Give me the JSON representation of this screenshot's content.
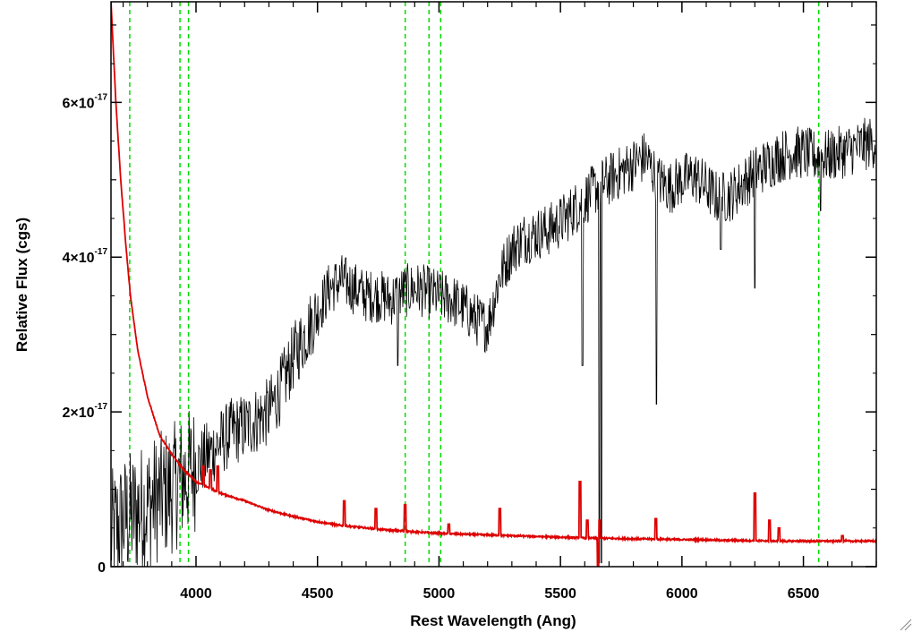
{
  "chart_data": {
    "type": "line",
    "title": "",
    "xlabel": "Rest Wavelength (Ang)",
    "ylabel": "Relative Flux (cgs)",
    "xlim": [
      3650,
      6800
    ],
    "ylim": [
      0,
      7.3e-17
    ],
    "grid": false,
    "legend": "none",
    "x_ticks": [
      {
        "value": 4000,
        "label": "4000"
      },
      {
        "value": 4500,
        "label": "4500"
      },
      {
        "value": 5000,
        "label": "5000"
      },
      {
        "value": 5500,
        "label": "5500"
      },
      {
        "value": 6000,
        "label": "6000"
      },
      {
        "value": 6500,
        "label": "6500"
      }
    ],
    "y_ticks": [
      {
        "value": 0,
        "label": "0",
        "mantissa": "0",
        "exponent": ""
      },
      {
        "value": 2e-17,
        "label": "2×10⁻¹⁷",
        "mantissa": "2×10",
        "exponent": "-17"
      },
      {
        "value": 4e-17,
        "label": "4×10⁻¹⁷",
        "mantissa": "4×10",
        "exponent": "-17"
      },
      {
        "value": 6e-17,
        "label": "6×10⁻¹⁷",
        "mantissa": "6×10",
        "exponent": "-17"
      }
    ],
    "reference_lines_x": [
      3727,
      3934,
      3969,
      4861,
      4959,
      5007,
      6563
    ],
    "series": [
      {
        "color": "#000000",
        "style": "noisy",
        "noise": [
          8.5e-18,
          4.5e-18,
          3.5e-18
        ],
        "points": [
          [
            3650,
            4e-18
          ],
          [
            3700,
            6e-18
          ],
          [
            3750,
            7e-18
          ],
          [
            3800,
            8e-18
          ],
          [
            3850,
            9e-18
          ],
          [
            3900,
            1e-17
          ],
          [
            3950,
            1.15e-17
          ],
          [
            4000,
            1.3e-17
          ],
          [
            4050,
            1.45e-17
          ],
          [
            4100,
            1.6e-17
          ],
          [
            4150,
            1.75e-17
          ],
          [
            4200,
            1.8e-17
          ],
          [
            4250,
            1.9e-17
          ],
          [
            4300,
            2e-17
          ],
          [
            4350,
            2.3e-17
          ],
          [
            4400,
            2.7e-17
          ],
          [
            4450,
            3e-17
          ],
          [
            4500,
            3.3e-17
          ],
          [
            4550,
            3.6e-17
          ],
          [
            4600,
            3.7e-17
          ],
          [
            4650,
            3.6e-17
          ],
          [
            4700,
            3.5e-17
          ],
          [
            4750,
            3.5e-17
          ],
          [
            4800,
            3.45e-17
          ],
          [
            4850,
            3.55e-17
          ],
          [
            4900,
            3.6e-17
          ],
          [
            4950,
            3.55e-17
          ],
          [
            5000,
            3.5e-17
          ],
          [
            5050,
            3.45e-17
          ],
          [
            5100,
            3.35e-17
          ],
          [
            5150,
            3.2e-17
          ],
          [
            5200,
            3.1e-17
          ],
          [
            5250,
            3.75e-17
          ],
          [
            5300,
            4.1e-17
          ],
          [
            5350,
            4.25e-17
          ],
          [
            5400,
            4.3e-17
          ],
          [
            5450,
            4.35e-17
          ],
          [
            5500,
            4.45e-17
          ],
          [
            5550,
            4.6e-17
          ],
          [
            5600,
            4.75e-17
          ],
          [
            5650,
            4.9e-17
          ],
          [
            5700,
            5e-17
          ],
          [
            5750,
            5.1e-17
          ],
          [
            5800,
            5.2e-17
          ],
          [
            5850,
            5.3e-17
          ],
          [
            5900,
            5e-17
          ],
          [
            5950,
            4.9e-17
          ],
          [
            6000,
            5e-17
          ],
          [
            6050,
            5.05e-17
          ],
          [
            6100,
            4.9e-17
          ],
          [
            6150,
            4.75e-17
          ],
          [
            6200,
            4.8e-17
          ],
          [
            6250,
            4.95e-17
          ],
          [
            6300,
            5.1e-17
          ],
          [
            6350,
            5.2e-17
          ],
          [
            6400,
            5.3e-17
          ],
          [
            6450,
            5.35e-17
          ],
          [
            6500,
            5.35e-17
          ],
          [
            6550,
            5.3e-17
          ],
          [
            6600,
            5.3e-17
          ],
          [
            6650,
            5.35e-17
          ],
          [
            6700,
            5.4e-17
          ],
          [
            6750,
            5.45e-17
          ],
          [
            6800,
            5.5e-17
          ]
        ],
        "absorption_features": [
          [
            4830,
            2.6e-17
          ],
          [
            5590,
            2.6e-17
          ],
          [
            5660,
            5e-19
          ],
          [
            5668,
            5e-19
          ],
          [
            5895,
            2.1e-17
          ],
          [
            6300,
            3.6e-17
          ],
          [
            6160,
            4.1e-17
          ],
          [
            6570,
            4.6e-17
          ]
        ]
      },
      {
        "color": "#dd0000",
        "style": "smooth",
        "points": [
          [
            3650,
            7.3e-17
          ],
          [
            3670,
            6e-17
          ],
          [
            3690,
            5e-17
          ],
          [
            3710,
            4.2e-17
          ],
          [
            3730,
            3.5e-17
          ],
          [
            3760,
            2.8e-17
          ],
          [
            3800,
            2.2e-17
          ],
          [
            3850,
            1.7e-17
          ],
          [
            3900,
            1.45e-17
          ],
          [
            3950,
            1.25e-17
          ],
          [
            4000,
            1.1e-17
          ],
          [
            4100,
            9.5e-18
          ],
          [
            4200,
            8.5e-18
          ],
          [
            4300,
            7.3e-18
          ],
          [
            4400,
            6.5e-18
          ],
          [
            4500,
            5.8e-18
          ],
          [
            4600,
            5.3e-18
          ],
          [
            4700,
            5e-18
          ],
          [
            4800,
            4.7e-18
          ],
          [
            4900,
            4.5e-18
          ],
          [
            5000,
            4.3e-18
          ],
          [
            5200,
            4.1e-18
          ],
          [
            5400,
            3.9e-18
          ],
          [
            5600,
            3.7e-18
          ],
          [
            5800,
            3.6e-18
          ],
          [
            6000,
            3.5e-18
          ],
          [
            6200,
            3.4e-18
          ],
          [
            6400,
            3.3e-18
          ],
          [
            6600,
            3.3e-18
          ],
          [
            6800,
            3.3e-18
          ]
        ],
        "emission_features": [
          [
            4030,
            1.3e-17
          ],
          [
            4060,
            1.25e-17
          ],
          [
            4090,
            1.3e-17
          ],
          [
            4610,
            8.5e-18
          ],
          [
            4740,
            7.5e-18
          ],
          [
            4861,
            8e-18
          ],
          [
            5040,
            5.5e-18
          ],
          [
            5250,
            7.5e-18
          ],
          [
            5580,
            1.1e-17
          ],
          [
            5610,
            6e-18
          ],
          [
            5660,
            6e-18
          ],
          [
            5893,
            6.2e-18
          ],
          [
            6300,
            9.5e-18
          ],
          [
            6360,
            6e-18
          ],
          [
            6400,
            5e-18
          ],
          [
            6660,
            4e-18
          ]
        ],
        "dip_features": [
          [
            5655,
            0.0
          ]
        ]
      }
    ]
  }
}
